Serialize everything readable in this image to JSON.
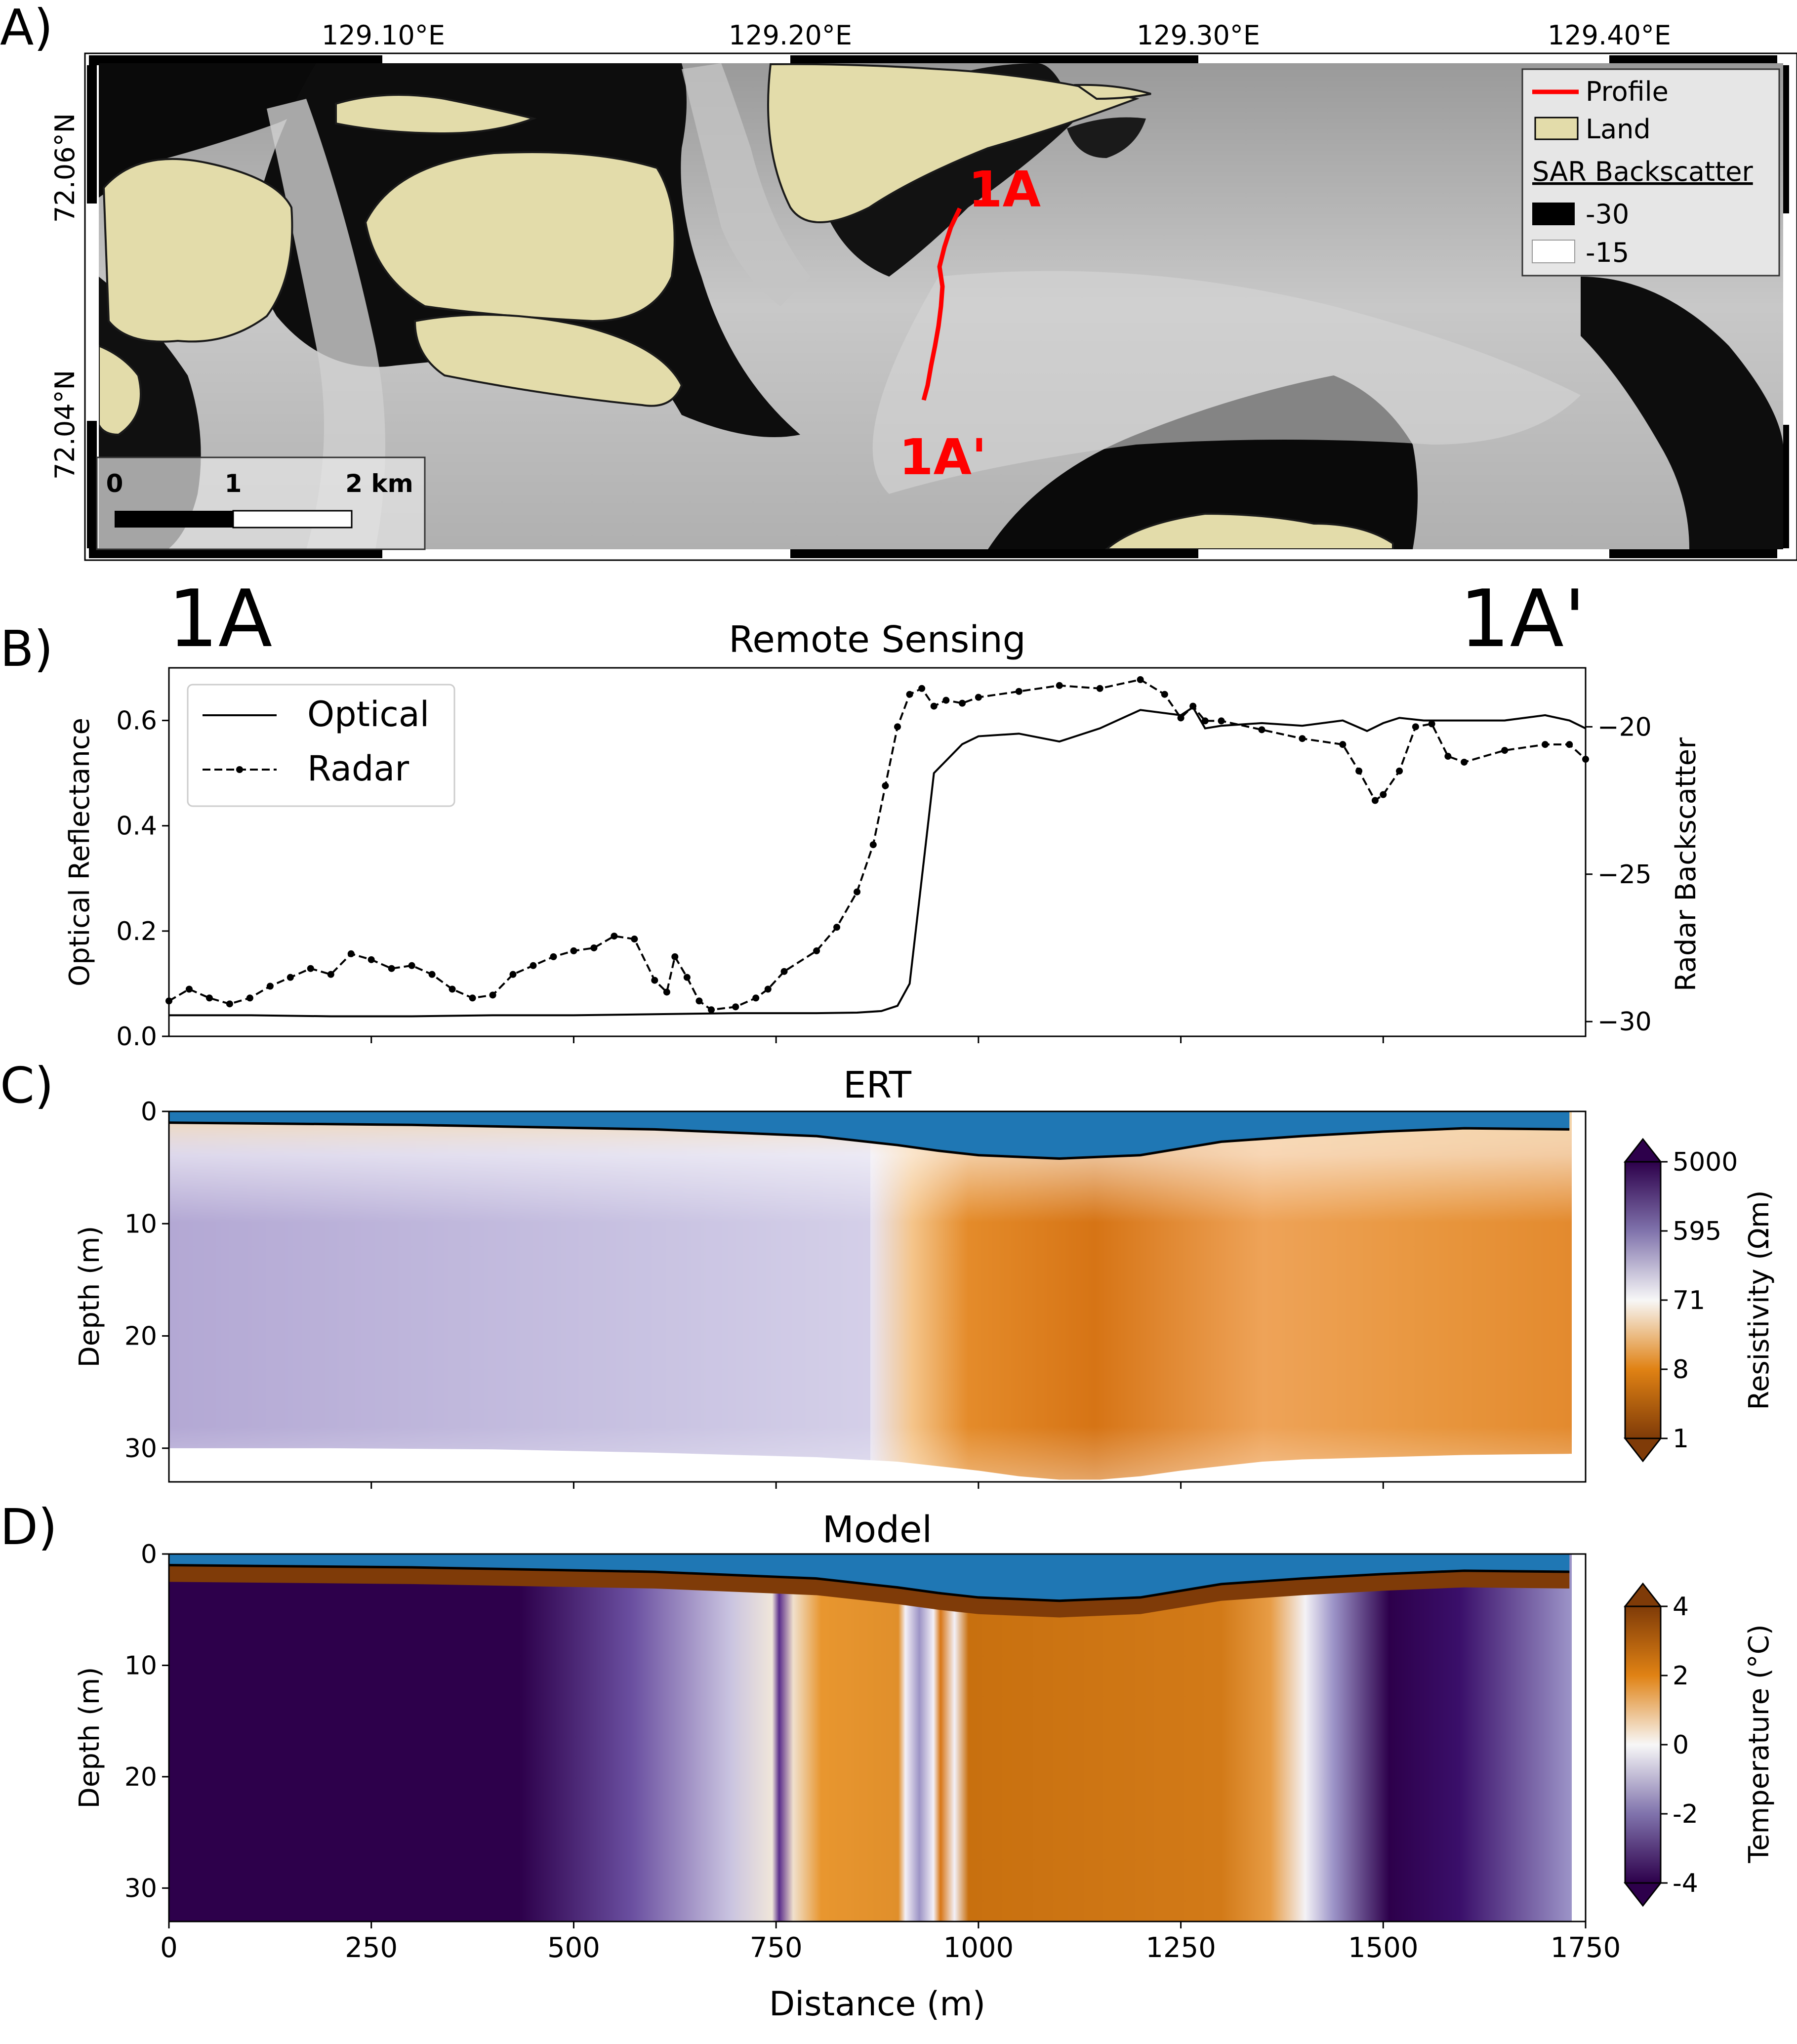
{
  "panels": {
    "a_label": "A)",
    "b_label": "B)",
    "c_label": "C)",
    "d_label": "D)"
  },
  "map": {
    "lon_ticks": [
      "129.10°E",
      "129.20°E",
      "129.30°E",
      "129.40°E"
    ],
    "lat_ticks": [
      "72.06°N",
      "72.04°N"
    ],
    "profile_start": "1A",
    "profile_end": "1A'",
    "legend": {
      "profile": "Profile",
      "land": "Land",
      "sar_title": "SAR Backscatter",
      "sar_low": "-30",
      "sar_high": "-15"
    },
    "scalebar": {
      "t0": "0",
      "t1": "1",
      "t2": "2 km"
    },
    "colors": {
      "land": "#e3dcaa",
      "profile": "#ff0000"
    }
  },
  "remote_sensing": {
    "title": "Remote Sensing",
    "left_marker": "1A",
    "right_marker": "1A'"
  },
  "chart_data": [
    {
      "type": "line",
      "title": "Remote Sensing",
      "xlabel": "",
      "ylabel": "Optical Reflectance",
      "y2label": "Radar Backscatter",
      "xlim": [
        0,
        1750
      ],
      "ylim": [
        0,
        0.7
      ],
      "y2lim": [
        -30.5,
        -18
      ],
      "yticks": [
        "0.0",
        "0.2",
        "0.4",
        "0.6"
      ],
      "y2ticks": [
        "−20",
        "−25",
        "−30"
      ],
      "legend": {
        "optical": "Optical",
        "radar": "Radar",
        "position": "top-left"
      },
      "series": [
        {
          "name": "Optical",
          "axis": "left",
          "x": [
            0,
            100,
            200,
            300,
            400,
            500,
            600,
            700,
            800,
            850,
            880,
            900,
            915,
            930,
            945,
            980,
            1000,
            1050,
            1100,
            1150,
            1200,
            1250,
            1265,
            1280,
            1300,
            1350,
            1400,
            1450,
            1480,
            1500,
            1520,
            1550,
            1600,
            1650,
            1700,
            1730,
            1750
          ],
          "y": [
            0.04,
            0.04,
            0.038,
            0.038,
            0.04,
            0.04,
            0.042,
            0.044,
            0.044,
            0.045,
            0.048,
            0.058,
            0.1,
            0.3,
            0.5,
            0.555,
            0.57,
            0.575,
            0.56,
            0.585,
            0.62,
            0.61,
            0.625,
            0.585,
            0.59,
            0.595,
            0.59,
            0.6,
            0.58,
            0.595,
            0.605,
            0.6,
            0.6,
            0.6,
            0.61,
            0.6,
            0.585
          ]
        },
        {
          "name": "Radar",
          "axis": "right",
          "x": [
            0,
            25,
            50,
            75,
            100,
            125,
            150,
            175,
            200,
            225,
            250,
            275,
            300,
            325,
            350,
            375,
            400,
            425,
            450,
            475,
            500,
            525,
            550,
            575,
            600,
            615,
            625,
            640,
            655,
            670,
            700,
            725,
            740,
            760,
            800,
            825,
            850,
            870,
            885,
            900,
            915,
            930,
            945,
            960,
            980,
            1000,
            1050,
            1100,
            1150,
            1200,
            1230,
            1250,
            1265,
            1280,
            1300,
            1350,
            1400,
            1450,
            1470,
            1490,
            1500,
            1520,
            1540,
            1560,
            1580,
            1600,
            1650,
            1700,
            1730,
            1750
          ],
          "y": [
            -29.3,
            -28.9,
            -29.2,
            -29.4,
            -29.2,
            -28.8,
            -28.5,
            -28.2,
            -28.4,
            -27.7,
            -27.9,
            -28.2,
            -28.1,
            -28.4,
            -28.9,
            -29.2,
            -29.1,
            -28.4,
            -28.1,
            -27.8,
            -27.6,
            -27.5,
            -27.1,
            -27.2,
            -28.6,
            -29.0,
            -27.8,
            -28.5,
            -29.3,
            -29.6,
            -29.5,
            -29.2,
            -28.9,
            -28.3,
            -27.6,
            -26.8,
            -25.6,
            -24.0,
            -22.0,
            -20.0,
            -18.9,
            -18.7,
            -19.3,
            -19.1,
            -19.2,
            -19.0,
            -18.8,
            -18.6,
            -18.7,
            -18.4,
            -18.9,
            -19.7,
            -19.3,
            -19.8,
            -19.8,
            -20.1,
            -20.4,
            -20.6,
            -21.5,
            -22.5,
            -22.3,
            -21.5,
            -20.0,
            -19.9,
            -21.0,
            -21.2,
            -20.8,
            -20.6,
            -20.6,
            -21.1
          ]
        }
      ]
    },
    {
      "type": "heatmap",
      "title": "ERT",
      "xlabel": "",
      "ylabel": "Depth (m)",
      "xlim": [
        0,
        1750
      ],
      "ylim": [
        33,
        0
      ],
      "yticks": [
        0,
        10,
        20,
        30
      ],
      "colorbar": {
        "label": "Resistivity (Ωm)",
        "ticks": [
          "5000",
          "595",
          "71",
          "8",
          "1"
        ],
        "range": [
          1,
          5000
        ],
        "scale": "log"
      },
      "water_depth_x": [
        0,
        300,
        600,
        800,
        900,
        950,
        1000,
        1100,
        1200,
        1300,
        1400,
        1500,
        1600,
        1730
      ],
      "water_depth_y": [
        1.0,
        1.2,
        1.6,
        2.2,
        3.0,
        3.5,
        3.9,
        4.2,
        3.9,
        2.7,
        2.2,
        1.8,
        1.5,
        1.6
      ],
      "bottom_depth_x": [
        0,
        200,
        400,
        600,
        800,
        900,
        1000,
        1050,
        1100,
        1150,
        1200,
        1250,
        1300,
        1350,
        1400,
        1500,
        1600,
        1730
      ],
      "bottom_depth_y": [
        30.0,
        30.0,
        30.1,
        30.4,
        30.8,
        31.2,
        32.0,
        32.5,
        32.8,
        32.8,
        32.5,
        32.0,
        31.6,
        31.2,
        31.0,
        30.8,
        30.6,
        30.5
      ]
    },
    {
      "type": "heatmap",
      "title": "Model",
      "xlabel": "Distance (m)",
      "ylabel": "Depth (m)",
      "xlim": [
        0,
        1750
      ],
      "ylim": [
        33,
        0
      ],
      "xticks": [
        0,
        250,
        500,
        750,
        1000,
        1250,
        1500,
        1750
      ],
      "yticks": [
        0,
        10,
        20,
        30
      ],
      "colorbar": {
        "label": "Temperature (°C)",
        "ticks": [
          "4",
          "2",
          "0",
          "-2",
          "-4"
        ],
        "range": [
          -4,
          4
        ]
      },
      "water_depth_x": [
        0,
        300,
        600,
        800,
        900,
        950,
        1000,
        1100,
        1200,
        1300,
        1400,
        1500,
        1600,
        1730
      ],
      "water_depth_y": [
        1.0,
        1.2,
        1.6,
        2.2,
        3.0,
        3.5,
        3.9,
        4.2,
        3.9,
        2.7,
        2.2,
        1.8,
        1.5,
        1.6
      ]
    }
  ],
  "colors": {
    "water": "#1f77b4",
    "purple": "#2d004b",
    "orange": "#b35806"
  }
}
